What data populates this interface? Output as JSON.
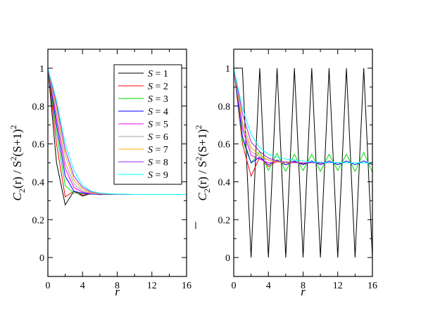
{
  "chart_data": [
    {
      "type": "line",
      "xlabel": "r",
      "ylabel": {
        "c": "C",
        "sub": "2",
        "arg": "(r) / S",
        "sup1": "2",
        "mid": "(S+1)",
        "sup2": "2"
      },
      "xlim": [
        0,
        16
      ],
      "ylim": [
        -0.1,
        1.1
      ],
      "xticks": [
        0,
        4,
        8,
        12,
        16
      ],
      "yticks": [
        0,
        0.2,
        0.4,
        0.6,
        0.8,
        1
      ],
      "ytick_labels": [
        "0",
        "0.2",
        "0.4",
        "0.6",
        "0.8",
        "1"
      ],
      "xtick_labels": [
        "0",
        "4",
        "8",
        "12",
        "16"
      ],
      "grid": false,
      "legend": "top-right",
      "series": [
        {
          "name": "S = 1",
          "color": "#000000",
          "x": [
            0,
            1,
            2,
            3,
            4,
            5,
            6,
            7,
            8,
            9,
            10,
            11,
            12,
            13,
            14,
            15,
            16
          ],
          "y": [
            1,
            0.5,
            0.278,
            0.35,
            0.325,
            0.338,
            0.332,
            0.334,
            0.333,
            0.333,
            0.333,
            0.333,
            0.333,
            0.333,
            0.333,
            0.333,
            0.333
          ]
        },
        {
          "name": "S = 2",
          "color": "#ff0000",
          "x": [
            0,
            1,
            2,
            3,
            4,
            5,
            6,
            7,
            8,
            9,
            10,
            11,
            12,
            13,
            14,
            15,
            16
          ],
          "y": [
            1,
            0.6,
            0.32,
            0.35,
            0.33,
            0.337,
            0.333,
            0.334,
            0.333,
            0.333,
            0.333,
            0.333,
            0.333,
            0.333,
            0.333,
            0.333,
            0.333
          ]
        },
        {
          "name": "S = 3",
          "color": "#00dd00",
          "x": [
            0,
            1,
            2,
            3,
            4,
            5,
            6,
            7,
            8,
            9,
            10,
            11,
            12,
            13,
            14,
            15,
            16
          ],
          "y": [
            1,
            0.66,
            0.38,
            0.34,
            0.338,
            0.334,
            0.334,
            0.333,
            0.333,
            0.333,
            0.333,
            0.333,
            0.333,
            0.333,
            0.333,
            0.333,
            0.333
          ]
        },
        {
          "name": "S = 4",
          "color": "#0000ff",
          "x": [
            0,
            1,
            2,
            3,
            4,
            5,
            6,
            7,
            8,
            9,
            10,
            11,
            12,
            13,
            14,
            15,
            16
          ],
          "y": [
            1,
            0.7,
            0.43,
            0.35,
            0.34,
            0.335,
            0.334,
            0.333,
            0.333,
            0.333,
            0.333,
            0.333,
            0.333,
            0.333,
            0.333,
            0.333,
            0.333
          ]
        },
        {
          "name": "S = 5",
          "color": "#ff00ff",
          "x": [
            0,
            1,
            2,
            3,
            4,
            5,
            6,
            7,
            8,
            9,
            10,
            11,
            12,
            13,
            14,
            15,
            16
          ],
          "y": [
            1,
            0.73,
            0.47,
            0.37,
            0.345,
            0.337,
            0.335,
            0.334,
            0.333,
            0.333,
            0.333,
            0.333,
            0.333,
            0.333,
            0.333,
            0.333,
            0.333
          ]
        },
        {
          "name": "S = 6",
          "color": "#a0a0a0",
          "x": [
            0,
            1,
            2,
            3,
            4,
            5,
            6,
            7,
            8,
            9,
            10,
            11,
            12,
            13,
            14,
            15,
            16
          ],
          "y": [
            1,
            0.76,
            0.5,
            0.39,
            0.35,
            0.34,
            0.336,
            0.334,
            0.333,
            0.333,
            0.333,
            0.333,
            0.333,
            0.333,
            0.333,
            0.333,
            0.333
          ]
        },
        {
          "name": "S = 7",
          "color": "#ffa500",
          "x": [
            0,
            1,
            2,
            3,
            4,
            5,
            6,
            7,
            8,
            9,
            10,
            11,
            12,
            13,
            14,
            15,
            16
          ],
          "y": [
            1,
            0.79,
            0.54,
            0.41,
            0.36,
            0.343,
            0.337,
            0.335,
            0.334,
            0.333,
            0.333,
            0.333,
            0.333,
            0.333,
            0.333,
            0.333,
            0.333
          ]
        },
        {
          "name": "S = 8",
          "color": "#a020f0",
          "x": [
            0,
            1,
            2,
            3,
            4,
            5,
            6,
            7,
            8,
            9,
            10,
            11,
            12,
            13,
            14,
            15,
            16
          ],
          "y": [
            1,
            0.81,
            0.57,
            0.43,
            0.37,
            0.347,
            0.339,
            0.336,
            0.334,
            0.333,
            0.333,
            0.333,
            0.333,
            0.333,
            0.333,
            0.333,
            0.333
          ]
        },
        {
          "name": "S = 9",
          "color": "#00ffff",
          "x": [
            0,
            1,
            2,
            3,
            4,
            5,
            6,
            7,
            8,
            9,
            10,
            11,
            12,
            13,
            14,
            15,
            16
          ],
          "y": [
            1,
            0.83,
            0.6,
            0.46,
            0.38,
            0.35,
            0.34,
            0.337,
            0.335,
            0.334,
            0.333,
            0.333,
            0.333,
            0.333,
            0.333,
            0.333,
            0.333
          ]
        }
      ]
    },
    {
      "type": "line",
      "xlabel": "r",
      "ylabel": {
        "c": "C",
        "sub": "2",
        "arg": "(r) / S",
        "sup1": "2",
        "mid": "(S+1)",
        "sup2": "2"
      },
      "xlim": [
        0,
        16
      ],
      "ylim": [
        -0.1,
        1.1
      ],
      "xticks": [
        0,
        4,
        8,
        12,
        16
      ],
      "yticks": [
        0,
        0.2,
        0.4,
        0.6,
        0.8,
        1
      ],
      "ytick_labels": [
        "0",
        "0.2",
        "0.4",
        "0.6",
        "0.8",
        "1"
      ],
      "xtick_labels": [
        "0",
        "4",
        "8",
        "12",
        "16"
      ],
      "grid": false,
      "series": [
        {
          "name": "S = 1",
          "color": "#000000",
          "x": [
            0,
            1,
            2,
            3,
            4,
            5,
            6,
            7,
            8,
            9,
            10,
            11,
            12,
            13,
            14,
            15,
            16
          ],
          "y": [
            1,
            1,
            0,
            1,
            0,
            1,
            0,
            1,
            0,
            1,
            0,
            1,
            0,
            1,
            0,
            1,
            0
          ]
        },
        {
          "name": "S = 2",
          "color": "#ff0000",
          "x": [
            0,
            1,
            2,
            3,
            4,
            5,
            6,
            7,
            8,
            9,
            10,
            11,
            12,
            13,
            14,
            15,
            16
          ],
          "y": [
            1,
            0.6,
            0.43,
            0.53,
            0.48,
            0.51,
            0.49,
            0.505,
            0.495,
            0.502,
            0.498,
            0.501,
            0.499,
            0.5,
            0.5,
            0.5,
            0.5
          ]
        },
        {
          "name": "S = 3",
          "color": "#00dd00",
          "x": [
            0,
            1,
            2,
            3,
            4,
            5,
            6,
            7,
            8,
            9,
            10,
            11,
            12,
            13,
            14,
            15,
            16
          ],
          "y": [
            1,
            0.62,
            0.5,
            0.56,
            0.46,
            0.55,
            0.455,
            0.545,
            0.46,
            0.545,
            0.455,
            0.545,
            0.46,
            0.545,
            0.455,
            0.555,
            0.45
          ]
        },
        {
          "name": "S = 4",
          "color": "#0000ff",
          "x": [
            0,
            1,
            2,
            3,
            4,
            5,
            6,
            7,
            8,
            9,
            10,
            11,
            12,
            13,
            14,
            15,
            16
          ],
          "y": [
            1,
            0.64,
            0.5,
            0.53,
            0.49,
            0.515,
            0.49,
            0.51,
            0.49,
            0.51,
            0.49,
            0.51,
            0.49,
            0.51,
            0.49,
            0.51,
            0.49
          ]
        },
        {
          "name": "S = 5",
          "color": "#ff00ff",
          "x": [
            0,
            1,
            2,
            3,
            4,
            5,
            6,
            7,
            8,
            9,
            10,
            11,
            12,
            13,
            14,
            15,
            16
          ],
          "y": [
            1,
            0.68,
            0.54,
            0.52,
            0.5,
            0.505,
            0.5,
            0.502,
            0.5,
            0.501,
            0.5,
            0.5,
            0.5,
            0.5,
            0.5,
            0.5,
            0.5
          ]
        },
        {
          "name": "S = 6",
          "color": "#a0a0a0",
          "x": [
            0,
            1,
            2,
            3,
            4,
            5,
            6,
            7,
            8,
            9,
            10,
            11,
            12,
            13,
            14,
            15,
            16
          ],
          "y": [
            1,
            0.7,
            0.56,
            0.53,
            0.515,
            0.505,
            0.5,
            0.502,
            0.5,
            0.501,
            0.5,
            0.5,
            0.5,
            0.5,
            0.5,
            0.5,
            0.5
          ]
        },
        {
          "name": "S = 7",
          "color": "#ffa500",
          "x": [
            0,
            1,
            2,
            3,
            4,
            5,
            6,
            7,
            8,
            9,
            10,
            11,
            12,
            13,
            14,
            15,
            16
          ],
          "y": [
            1,
            0.72,
            0.58,
            0.54,
            0.515,
            0.505,
            0.502,
            0.501,
            0.5,
            0.5,
            0.5,
            0.5,
            0.5,
            0.5,
            0.5,
            0.5,
            0.5
          ]
        },
        {
          "name": "S = 8",
          "color": "#a020f0",
          "x": [
            0,
            1,
            2,
            3,
            4,
            5,
            6,
            7,
            8,
            9,
            10,
            11,
            12,
            13,
            14,
            15,
            16
          ],
          "y": [
            1,
            0.76,
            0.61,
            0.56,
            0.525,
            0.51,
            0.505,
            0.502,
            0.5,
            0.5,
            0.5,
            0.5,
            0.5,
            0.5,
            0.5,
            0.5,
            0.5
          ]
        },
        {
          "name": "S = 9",
          "color": "#00ffff",
          "x": [
            0,
            1,
            2,
            3,
            4,
            5,
            6,
            7,
            8,
            9,
            10,
            11,
            12,
            13,
            14,
            15,
            16
          ],
          "y": [
            1,
            0.79,
            0.65,
            0.58,
            0.545,
            0.53,
            0.52,
            0.515,
            0.51,
            0.505,
            0.503,
            0.502,
            0.501,
            0.5,
            0.5,
            0.5,
            0.5
          ]
        }
      ]
    }
  ]
}
